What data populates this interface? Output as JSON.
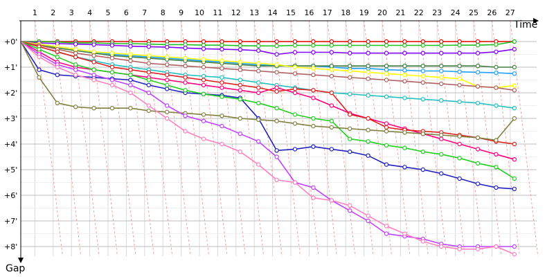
{
  "chart_data": {
    "type": "line",
    "xlabel": "Time",
    "ylabel": "Gap",
    "x_ticks": [
      "1",
      "2",
      "3",
      "4",
      "5",
      "6",
      "7",
      "8",
      "9",
      "10",
      "11",
      "12",
      "13",
      "14",
      "15",
      "16",
      "17",
      "18",
      "19",
      "20",
      "21",
      "22",
      "23",
      "24",
      "25",
      "26",
      "27"
    ],
    "y_ticks": [
      "+0'",
      "+1'",
      "+2'",
      "+3'",
      "+4'",
      "+5'",
      "+6'",
      "+7'",
      "+8'"
    ],
    "xlim": [
      0,
      28
    ],
    "ylim": [
      0,
      8.6
    ],
    "grid": true,
    "series": [
      {
        "color": "#e00000",
        "values": [
          0,
          0,
          0,
          0,
          0,
          0,
          0,
          0,
          0,
          0,
          0,
          0,
          0,
          0,
          0,
          0,
          0,
          0,
          0,
          0,
          0,
          0,
          0,
          0,
          0,
          0,
          0,
          0
        ]
      },
      {
        "color": "#20c020",
        "values": [
          0,
          0,
          0.02,
          0.05,
          0.05,
          0.08,
          0.08,
          0.1,
          0.12,
          0.12,
          0.14,
          0.14,
          0.16,
          0.17,
          0.17,
          0.15,
          0.15,
          0.15,
          0.15,
          0.15,
          0.15,
          0.15,
          0.15,
          0.15,
          0.14,
          0.14,
          0.12,
          0
        ]
      },
      {
        "color": "#8000ff",
        "values": [
          0,
          0.05,
          0.08,
          0.1,
          0.12,
          0.15,
          0.18,
          0.2,
          0.22,
          0.25,
          0.28,
          0.3,
          0.32,
          0.35,
          0.5,
          0.42,
          0.42,
          0.42,
          0.45,
          0.45,
          0.45,
          0.45,
          0.45,
          0.45,
          0.45,
          0.45,
          0.4,
          0.3
        ]
      },
      {
        "color": "#20a0ff",
        "values": [
          0,
          0.1,
          0.2,
          0.3,
          0.4,
          0.5,
          0.55,
          0.6,
          0.65,
          0.7,
          0.75,
          0.8,
          0.85,
          0.9,
          0.95,
          0.95,
          0.95,
          1.0,
          1.05,
          1.05,
          1.1,
          1.12,
          1.15,
          1.15,
          1.18,
          1.2,
          1.22,
          1.25
        ]
      },
      {
        "color": "#408040",
        "values": [
          0,
          0.12,
          0.25,
          0.35,
          0.45,
          0.55,
          0.6,
          0.65,
          0.7,
          0.75,
          0.8,
          0.85,
          0.9,
          0.95,
          0.95,
          0.95,
          0.95,
          0.95,
          0.95,
          0.95,
          0.95,
          0.95,
          0.95,
          0.95,
          0.95,
          0.95,
          1.0,
          1.0
        ]
      },
      {
        "color": "#ffff00",
        "values": [
          0,
          0.1,
          0.2,
          0.3,
          0.4,
          0.45,
          0.5,
          0.55,
          0.6,
          0.65,
          0.7,
          0.75,
          0.8,
          0.85,
          0.9,
          1.0,
          1.05,
          1.1,
          1.15,
          1.2,
          1.25,
          1.3,
          1.35,
          1.4,
          1.45,
          1.75,
          1.8,
          1.72
        ]
      },
      {
        "color": "#b06060",
        "values": [
          0,
          0.15,
          0.3,
          0.45,
          0.55,
          0.65,
          0.75,
          0.85,
          0.9,
          0.95,
          1.0,
          1.05,
          1.1,
          1.15,
          1.2,
          1.25,
          1.3,
          1.35,
          1.4,
          1.45,
          1.5,
          1.55,
          1.6,
          1.65,
          1.7,
          1.75,
          1.8,
          1.9
        ]
      },
      {
        "color": "#20c0c0",
        "values": [
          0,
          0.2,
          0.4,
          0.6,
          0.75,
          0.9,
          1.0,
          1.1,
          1.2,
          1.3,
          1.35,
          1.4,
          1.5,
          1.6,
          1.7,
          1.8,
          1.9,
          2.0,
          2.05,
          2.1,
          2.15,
          2.2,
          2.25,
          2.3,
          2.35,
          2.4,
          2.5,
          2.6
        ]
      },
      {
        "color": "#ff0080",
        "values": [
          0,
          0.4,
          0.8,
          1.0,
          1.1,
          1.2,
          1.3,
          1.4,
          1.5,
          1.6,
          1.7,
          1.8,
          1.9,
          2.0,
          1.8,
          2.0,
          2.2,
          2.5,
          2.8,
          3.0,
          3.2,
          3.4,
          3.6,
          3.8,
          4.0,
          4.2,
          4.4,
          4.6
        ]
      },
      {
        "color": "#e02020",
        "values": [
          0,
          0.2,
          0.4,
          0.6,
          0.8,
          1.0,
          1.1,
          1.2,
          1.3,
          1.4,
          1.5,
          1.6,
          1.7,
          1.8,
          1.95,
          1.85,
          1.9,
          2.0,
          2.85,
          3.0,
          3.35,
          3.45,
          3.5,
          3.55,
          3.65,
          3.75,
          3.9,
          4.0
        ]
      },
      {
        "color": "#2020c0",
        "values": [
          0,
          1.1,
          1.3,
          1.35,
          1.4,
          1.45,
          1.5,
          1.7,
          1.85,
          2.0,
          2.05,
          2.1,
          2.2,
          3.0,
          4.25,
          4.2,
          4.1,
          4.2,
          4.3,
          4.45,
          4.8,
          4.9,
          5.0,
          5.15,
          5.35,
          5.55,
          5.7,
          5.75
        ]
      },
      {
        "color": "#20d020",
        "values": [
          0,
          0.3,
          0.6,
          0.9,
          1.1,
          1.2,
          1.3,
          1.5,
          1.7,
          1.9,
          2.05,
          2.15,
          2.25,
          2.4,
          2.6,
          2.85,
          3.0,
          3.1,
          3.8,
          3.9,
          4.05,
          4.15,
          4.3,
          4.4,
          4.55,
          4.75,
          4.9,
          5.35
        ]
      },
      {
        "color": "#808040",
        "values": [
          0,
          1.4,
          2.4,
          2.55,
          2.6,
          2.6,
          2.6,
          2.7,
          2.75,
          2.8,
          2.85,
          2.9,
          3.0,
          3.05,
          3.1,
          3.2,
          3.3,
          3.35,
          3.4,
          3.45,
          3.5,
          3.55,
          3.6,
          3.65,
          3.7,
          3.75,
          3.85,
          3.0
        ]
      },
      {
        "color": "#c040ff",
        "values": [
          0,
          0.5,
          0.9,
          1.1,
          1.3,
          1.5,
          1.7,
          2.0,
          2.5,
          2.9,
          3.1,
          3.3,
          3.6,
          3.9,
          4.5,
          5.5,
          5.7,
          6.2,
          6.6,
          7.0,
          7.5,
          7.6,
          7.7,
          7.9,
          8.0,
          8.0,
          8.0,
          8.0
        ]
      },
      {
        "color": "#ff80c0",
        "values": [
          0,
          0.6,
          1.0,
          1.3,
          1.5,
          1.7,
          2.0,
          2.5,
          3.0,
          3.5,
          3.8,
          4.0,
          4.3,
          4.8,
          5.4,
          5.5,
          6.1,
          6.2,
          6.4,
          6.8,
          7.2,
          7.5,
          7.8,
          8.0,
          8.1,
          8.1,
          8.0,
          8.3
        ]
      }
    ]
  }
}
